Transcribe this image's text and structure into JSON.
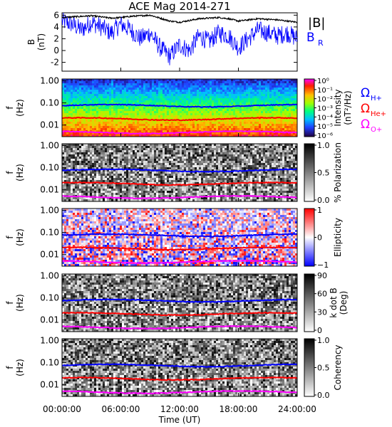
{
  "chart_data": {
    "type": "heatmap",
    "title": "ACE Mag 2014-271",
    "xlabel": "Time (UT)",
    "x_ticks": [
      "00:00:00",
      "06:00:00",
      "12:00:00",
      "18:00:00",
      "24:00:00"
    ],
    "x_tick_hours": [
      0,
      6,
      12,
      18,
      24
    ],
    "xlim_hours": [
      0,
      24
    ],
    "top_panel": {
      "type": "line",
      "ylabel": "B\n(nT)",
      "ylim": [
        -3.5,
        6.4
      ],
      "y_ticks": [
        6,
        4,
        2,
        0,
        -2
      ],
      "series": [
        {
          "name": "|B|",
          "color": "#000000",
          "x": [
            0,
            1,
            2,
            3,
            4,
            5,
            6,
            7,
            8,
            9,
            10,
            11,
            12,
            13,
            14,
            15,
            16,
            17,
            18,
            19,
            20,
            21,
            22,
            23,
            24
          ],
          "values": [
            5.6,
            5.7,
            5.8,
            5.9,
            5.7,
            5.5,
            5.6,
            5.8,
            5.9,
            6.0,
            5.5,
            5.0,
            4.8,
            5.1,
            5.4,
            5.5,
            5.6,
            5.4,
            5.0,
            5.2,
            5.4,
            5.3,
            5.2,
            5.0,
            4.8
          ]
        },
        {
          "name": "B",
          "subscript": "R",
          "color": "#0000ff",
          "x": [
            0,
            1,
            2,
            3,
            4,
            5,
            6,
            7,
            8,
            9,
            10,
            11,
            12,
            13,
            14,
            15,
            16,
            17,
            18,
            19,
            20,
            21,
            22,
            23,
            24
          ],
          "values": [
            5.0,
            4.5,
            3.5,
            4.8,
            4.0,
            3.0,
            4.5,
            3.5,
            2.0,
            3.0,
            0.5,
            -1.0,
            1.0,
            0.0,
            2.5,
            1.5,
            3.0,
            2.5,
            0.5,
            2.0,
            3.5,
            3.0,
            2.5,
            3.0,
            2.0
          ]
        }
      ]
    },
    "panels": [
      {
        "id": "intensity",
        "colormap": "rainbow",
        "ylabel": "f\n(Hz)",
        "cbar_label": "Intensity\n(nT²/Hz)",
        "cbar_ticks": [
          "10⁰",
          "10⁻¹",
          "10⁻²",
          "10⁻³",
          "10⁻⁴",
          "10⁻⁵",
          "10⁻⁶"
        ]
      },
      {
        "id": "polarization",
        "colormap": "gray",
        "ylabel": "f\n(Hz)",
        "cbar_label": "% Polarization",
        "cbar_ticks": [
          "1.0",
          "0.5",
          "0.0"
        ]
      },
      {
        "id": "ellipticity",
        "colormap": "bwr",
        "ylabel": "f\n(Hz)",
        "cbar_label": "Ellipticity",
        "cbar_ticks": [
          "1",
          "0",
          "−1"
        ]
      },
      {
        "id": "kdotb",
        "colormap": "gray",
        "ylabel": "f\n(Hz)",
        "cbar_label": "k dot B\n(Deg)",
        "cbar_ticks": [
          "90",
          "60",
          "30",
          "0"
        ]
      },
      {
        "id": "coherency",
        "colormap": "gray",
        "ylabel": "f\n(Hz)",
        "cbar_label": "Coherency",
        "cbar_ticks": [
          "1.0",
          "0.5",
          "0.0"
        ]
      }
    ],
    "freq_axis": {
      "scale": "log",
      "ylim_hz": [
        0.003,
        1.2
      ],
      "ticks": [
        1.0,
        0.1,
        0.01
      ],
      "tick_labels": [
        "1.00",
        "0.10",
        "0.01"
      ]
    },
    "gyrofrequency_lines": [
      {
        "name": "Ω",
        "subscript": "H+",
        "color": "#0000ff",
        "freq_hz": 0.075
      },
      {
        "name": "Ω",
        "subscript": "He+",
        "color": "#ff0000",
        "freq_hz": 0.019
      },
      {
        "name": "Ω",
        "subscript": "O+",
        "color": "#ff00ff",
        "freq_hz": 0.0047
      }
    ]
  }
}
